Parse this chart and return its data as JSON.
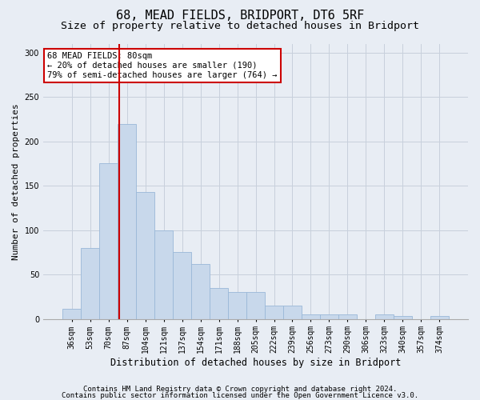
{
  "title": "68, MEAD FIELDS, BRIDPORT, DT6 5RF",
  "subtitle": "Size of property relative to detached houses in Bridport",
  "xlabel": "Distribution of detached houses by size in Bridport",
  "ylabel": "Number of detached properties",
  "categories": [
    "36sqm",
    "53sqm",
    "70sqm",
    "87sqm",
    "104sqm",
    "121sqm",
    "137sqm",
    "154sqm",
    "171sqm",
    "188sqm",
    "205sqm",
    "222sqm",
    "239sqm",
    "256sqm",
    "273sqm",
    "290sqm",
    "306sqm",
    "323sqm",
    "340sqm",
    "357sqm",
    "374sqm"
  ],
  "values": [
    11,
    80,
    176,
    220,
    143,
    100,
    75,
    62,
    35,
    30,
    30,
    15,
    15,
    5,
    5,
    5,
    0,
    5,
    3,
    0,
    3
  ],
  "bar_color": "#c8d8eb",
  "bar_edge_color": "#9ab8d8",
  "grid_color": "#c8d0dc",
  "background_color": "#e8edf4",
  "vline_color": "#cc0000",
  "vline_pos": 2.59,
  "annotation_text": "68 MEAD FIELDS: 80sqm\n← 20% of detached houses are smaller (190)\n79% of semi-detached houses are larger (764) →",
  "annotation_box_facecolor": "#ffffff",
  "annotation_box_edgecolor": "#cc0000",
  "ylim": [
    0,
    310
  ],
  "yticks": [
    0,
    50,
    100,
    150,
    200,
    250,
    300
  ],
  "footer1": "Contains HM Land Registry data © Crown copyright and database right 2024.",
  "footer2": "Contains public sector information licensed under the Open Government Licence v3.0.",
  "title_fontsize": 11,
  "subtitle_fontsize": 9.5,
  "xlabel_fontsize": 8.5,
  "ylabel_fontsize": 8,
  "tick_fontsize": 7,
  "annotation_fontsize": 7.5,
  "footer_fontsize": 6.5
}
